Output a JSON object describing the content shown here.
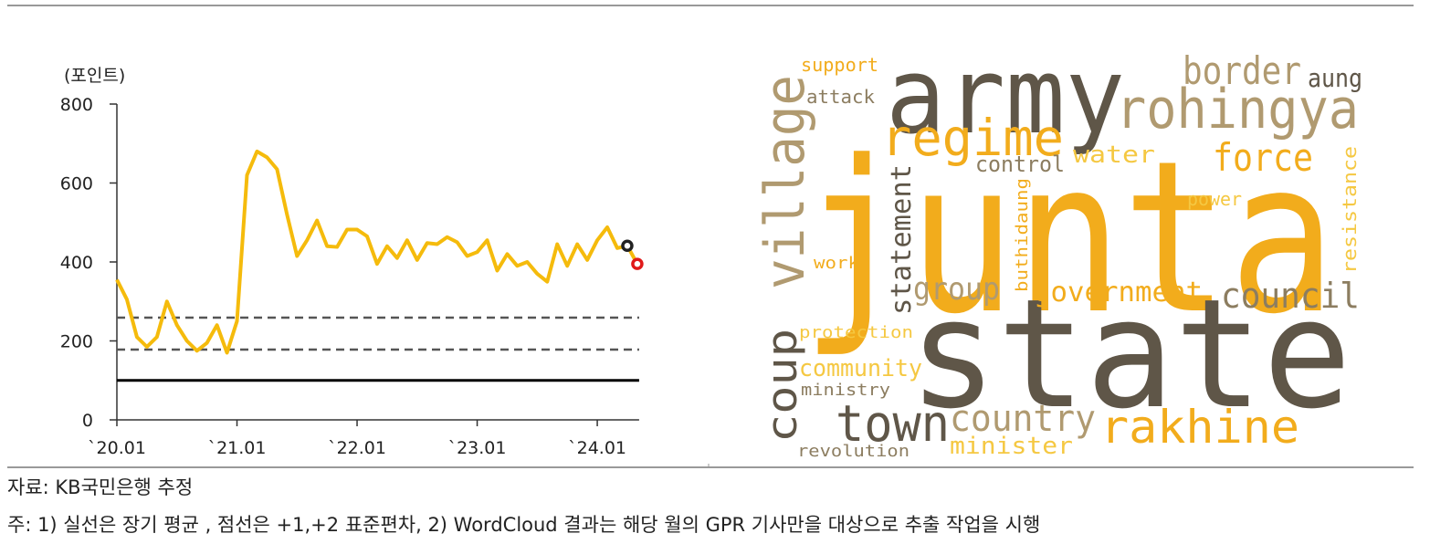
{
  "chart_data": [
    {
      "type": "line",
      "y_unit": "(포인트)",
      "categories": [
        "`20.01",
        null,
        null,
        null,
        null,
        null,
        null,
        null,
        null,
        null,
        null,
        null,
        "`21.01",
        null,
        null,
        null,
        null,
        null,
        null,
        null,
        null,
        null,
        null,
        null,
        "`22.01",
        null,
        null,
        null,
        null,
        null,
        null,
        null,
        null,
        null,
        null,
        null,
        "`23.01",
        null,
        null,
        null,
        null,
        null,
        null,
        null,
        null,
        null,
        null,
        null,
        "`24.01",
        null,
        null,
        null,
        null
      ],
      "series": [
        {
          "color": "#f5bb0c",
          "values": [
            355,
            305,
            210,
            185,
            210,
            300,
            240,
            200,
            175,
            195,
            240,
            170,
            250,
            620,
            680,
            665,
            635,
            520,
            415,
            455,
            505,
            440,
            438,
            482,
            482,
            465,
            395,
            440,
            410,
            455,
            405,
            448,
            445,
            463,
            450,
            415,
            425,
            455,
            378,
            420,
            390,
            400,
            370,
            350,
            445,
            390,
            445,
            405,
            455,
            488,
            435,
            441,
            395
          ]
        },
        {
          "color": "#222222",
          "marker": "circle",
          "values": [
            null,
            null,
            null,
            null,
            null,
            null,
            null,
            null,
            null,
            null,
            null,
            null,
            null,
            null,
            null,
            null,
            null,
            null,
            null,
            null,
            null,
            null,
            null,
            null,
            null,
            null,
            null,
            null,
            null,
            null,
            null,
            null,
            null,
            null,
            null,
            null,
            null,
            null,
            null,
            null,
            null,
            null,
            null,
            null,
            null,
            null,
            null,
            null,
            null,
            null,
            null,
            441,
            null
          ]
        },
        {
          "color": "#e01a1a",
          "marker": "circle",
          "values": [
            null,
            null,
            null,
            null,
            null,
            null,
            null,
            null,
            null,
            null,
            null,
            null,
            null,
            null,
            null,
            null,
            null,
            null,
            null,
            null,
            null,
            null,
            null,
            null,
            null,
            null,
            null,
            null,
            null,
            null,
            null,
            null,
            null,
            null,
            null,
            null,
            null,
            null,
            null,
            null,
            null,
            null,
            null,
            null,
            null,
            null,
            null,
            null,
            null,
            null,
            null,
            null,
            395
          ]
        }
      ],
      "hlines": [
        {
          "value": 100,
          "style": "solid",
          "color": "#000000"
        },
        {
          "value": 259,
          "style": "dashed",
          "color": "#555555"
        },
        {
          "value": 178,
          "style": "dashed",
          "color": "#555555"
        }
      ],
      "ylim": [
        0,
        800
      ],
      "yticks": [
        0,
        200,
        400,
        600,
        800
      ]
    },
    {
      "type": "wordcloud",
      "words": [
        {
          "text": "junta",
          "color": "#f2ac1c"
        },
        {
          "text": "state",
          "color": "#5f5648"
        },
        {
          "text": "army",
          "color": "#5f5648"
        },
        {
          "text": "rohingya",
          "color": "#b09a70"
        },
        {
          "text": "border",
          "color": "#b09a70"
        },
        {
          "text": "aung",
          "color": "#5f5648"
        },
        {
          "text": "regime",
          "color": "#f2ac1c"
        },
        {
          "text": "force",
          "color": "#f2ac1c"
        },
        {
          "text": "water",
          "color": "#f5c842"
        },
        {
          "text": "control",
          "color": "#8c7d60"
        },
        {
          "text": "support",
          "color": "#f2ac1c"
        },
        {
          "text": "attack",
          "color": "#8c7d60"
        },
        {
          "text": "village",
          "color": "#b09a70"
        },
        {
          "text": "statement",
          "color": "#5f5648"
        },
        {
          "text": "buthidaung",
          "color": "#f2ac1c"
        },
        {
          "text": "resistance",
          "color": "#f5c842"
        },
        {
          "text": "coup",
          "color": "#5f5648"
        },
        {
          "text": "power",
          "color": "#f5c842"
        },
        {
          "text": "work",
          "color": "#f2ac1c"
        },
        {
          "text": "group",
          "color": "#b09a70"
        },
        {
          "text": "government",
          "color": "#f2ac1c"
        },
        {
          "text": "council",
          "color": "#8c7d60"
        },
        {
          "text": "protection",
          "color": "#f5c842"
        },
        {
          "text": "community",
          "color": "#f5c842"
        },
        {
          "text": "ministry",
          "color": "#8c7d60"
        },
        {
          "text": "town",
          "color": "#5f5648"
        },
        {
          "text": "country",
          "color": "#b09a70"
        },
        {
          "text": "rakhine",
          "color": "#f2ac1c"
        },
        {
          "text": "minister",
          "color": "#f5c842"
        },
        {
          "text": "revolution",
          "color": "#8c7d60"
        }
      ]
    }
  ],
  "source": "자료: KB국민은행 추정",
  "note": "주: 1) 실선은 장기 평균 , 점선은 +1,+2 표준편차, 2) WordCloud 결과는 해당 월의 GPR 기사만을 대상으로 추출 작업을 시행"
}
